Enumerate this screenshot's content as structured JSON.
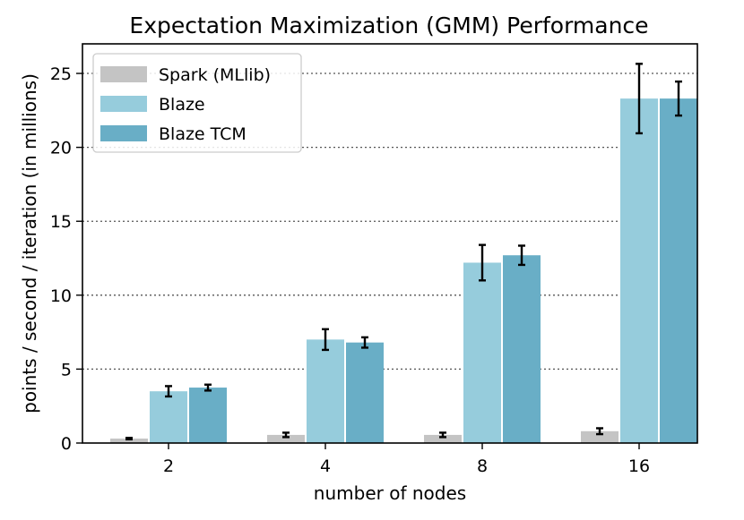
{
  "chart_data": {
    "type": "bar",
    "title": "Expectation Maximization (GMM) Performance",
    "xlabel": "number of nodes",
    "ylabel": "points / second / iteration (in millions)",
    "categories": [
      "2",
      "4",
      "8",
      "16"
    ],
    "ylim": [
      0,
      27
    ],
    "yticks": [
      0,
      5,
      10,
      15,
      20,
      25
    ],
    "grid": "horizontal-dotted",
    "legend_position": "top-left",
    "series": [
      {
        "name": "Spark (MLlib)",
        "color": "#c4c4c4",
        "values": [
          0.3,
          0.55,
          0.55,
          0.8
        ],
        "errors": [
          0.05,
          0.15,
          0.15,
          0.2
        ]
      },
      {
        "name": "Blaze",
        "color": "#96ccdc",
        "values": [
          3.5,
          7.0,
          12.2,
          23.3
        ],
        "errors": [
          0.35,
          0.7,
          1.2,
          2.35
        ]
      },
      {
        "name": "Blaze TCM",
        "color": "#69aec6",
        "values": [
          3.75,
          6.8,
          12.7,
          23.3
        ],
        "errors": [
          0.2,
          0.35,
          0.65,
          1.15
        ]
      }
    ]
  }
}
